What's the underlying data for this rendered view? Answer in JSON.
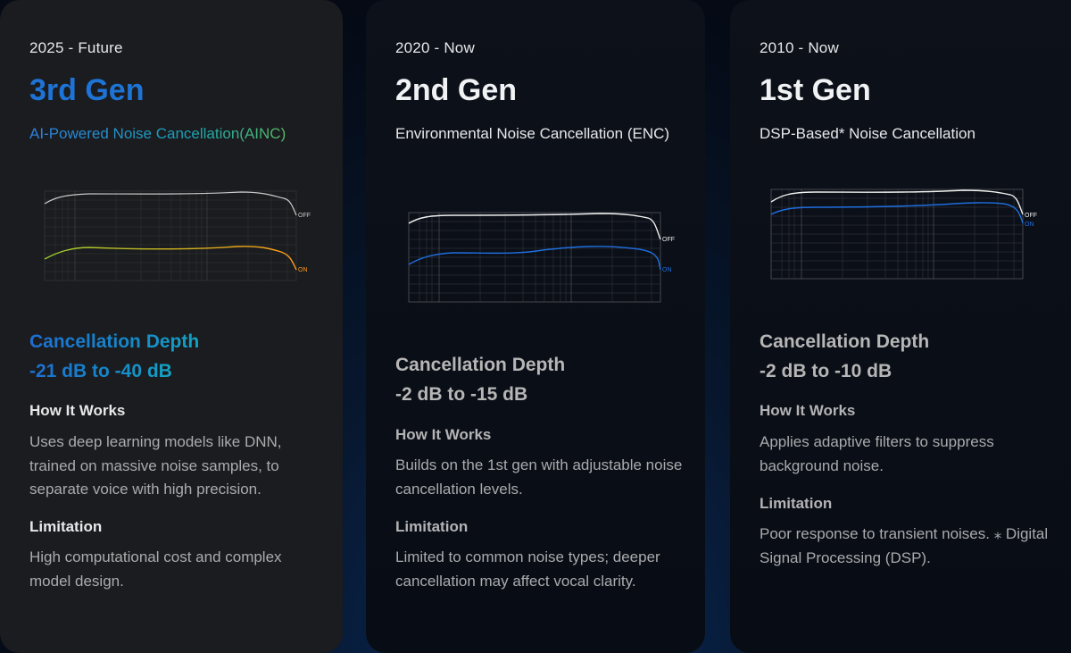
{
  "cards": [
    {
      "era": "2025 - Future",
      "gen": "3rd Gen",
      "subtitle": "AI-Powered Noise Cancellation(AINC)",
      "depth_label": "Cancellation Depth",
      "depth_value": "-21 dB to -40 dB",
      "how_heading": "How It Works",
      "how_text": "Uses deep learning models like DNN, trained on massive noise samples, to separate voice with high precision.",
      "limit_heading": "Limitation",
      "limit_text": "High computational cost and complex model design.",
      "graph": {
        "off_label": "OFF",
        "on_label": "ON"
      }
    },
    {
      "era": "2020 - Now",
      "gen": "2nd Gen",
      "subtitle": "Environmental Noise Cancellation (ENC)",
      "depth_label": "Cancellation Depth",
      "depth_value": "-2 dB to -15 dB",
      "how_heading": "How It Works",
      "how_text": "Builds on the 1st gen with adjustable noise cancellation levels.",
      "limit_heading": "Limitation",
      "limit_text": "Limited to common noise types; deeper cancellation may affect vocal clarity.",
      "graph": {
        "off_label": "OFF",
        "on_label": "ON"
      }
    },
    {
      "era": "2010 - Now",
      "gen": "1st Gen",
      "subtitle": "DSP-Based* Noise Cancellation",
      "depth_label": "Cancellation Depth",
      "depth_value": "-2 dB to -10 dB",
      "how_heading": "How It Works",
      "how_text": "Applies adaptive filters to suppress background noise.",
      "limit_heading": "Limitation",
      "limit_text": "Poor response to transient noises. ⁎ Digital Signal Processing (DSP).",
      "graph": {
        "off_label": "OFF",
        "on_label": "ON"
      }
    }
  ],
  "colors": {
    "accent_blue": "#1e74d6",
    "on_curve_gen3_start": "#9ccd2f",
    "on_curve_gen3_end": "#ff9b1a",
    "on_curve_blue": "#1f6fe0",
    "off_curve": "#e8e8e8"
  }
}
